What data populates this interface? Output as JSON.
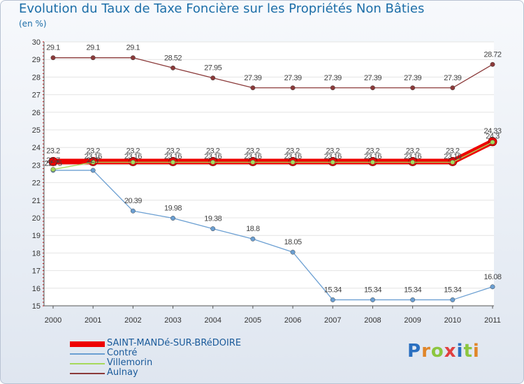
{
  "title": "Evolution du Taux de Taxe Foncière sur les Propriétés Non Bâties",
  "subtitle": "(en %)",
  "logo": [
    "P",
    "r",
    "o",
    "x",
    "i",
    "t",
    "i"
  ],
  "chart_data": {
    "type": "line",
    "title": "Evolution du Taux de Taxe Foncière sur les Propriétés Non Bâties",
    "ylabel": "(en %)",
    "ylim": [
      15,
      30
    ],
    "yticks": [
      15,
      16,
      17,
      18,
      19,
      20,
      21,
      22,
      23,
      24,
      25,
      26,
      27,
      28,
      29,
      30
    ],
    "categories": [
      "2000",
      "2001",
      "2002",
      "2003",
      "2004",
      "2005",
      "2006",
      "2007",
      "2008",
      "2009",
      "2010",
      "2011"
    ],
    "series": [
      {
        "name": "SAINT-MANDé-SUR-BRéDOIRE",
        "color": "#ee0000",
        "values": [
          23.2,
          23.2,
          23.2,
          23.2,
          23.2,
          23.2,
          23.2,
          23.2,
          23.2,
          23.2,
          23.2,
          24.33
        ],
        "labels": [
          "23.2",
          "23.2",
          "23.2",
          "23.2",
          "23.2",
          "23.2",
          "23.2",
          "23.2",
          "23.2",
          "23.2",
          "23.2",
          "24.33"
        ]
      },
      {
        "name": "Contré",
        "color": "#6b9fd2",
        "values": [
          22.7,
          22.7,
          20.39,
          19.98,
          19.38,
          18.8,
          18.05,
          15.34,
          15.34,
          15.34,
          15.34,
          16.08
        ],
        "labels": [
          "22.7",
          "22.7",
          "20.39",
          "19.98",
          "19.38",
          "18.8",
          "18.05",
          "15.34",
          "15.34",
          "15.34",
          "15.34",
          "16.08"
        ]
      },
      {
        "name": "Villemorin",
        "color": "#a6d95c",
        "values": [
          22.75,
          23.16,
          23.16,
          23.16,
          23.16,
          23.16,
          23.16,
          23.16,
          23.16,
          23.16,
          23.16,
          24.3
        ],
        "labels": [
          "22.75",
          "23.16",
          "23.16",
          "23.16",
          "23.16",
          "23.16",
          "23.16",
          "23.16",
          "23.16",
          "23.16",
          "23.16",
          "24.3"
        ]
      },
      {
        "name": "Aulnay",
        "color": "#8b3a3a",
        "values": [
          29.1,
          29.1,
          29.1,
          28.52,
          27.95,
          27.39,
          27.39,
          27.39,
          27.39,
          27.39,
          27.39,
          28.72
        ],
        "labels": [
          "29.1",
          "29.1",
          "29.1",
          "28.52",
          "27.95",
          "27.39",
          "27.39",
          "27.39",
          "27.39",
          "27.39",
          "27.39",
          "28.72"
        ]
      }
    ],
    "legend_position": "bottom-left"
  }
}
